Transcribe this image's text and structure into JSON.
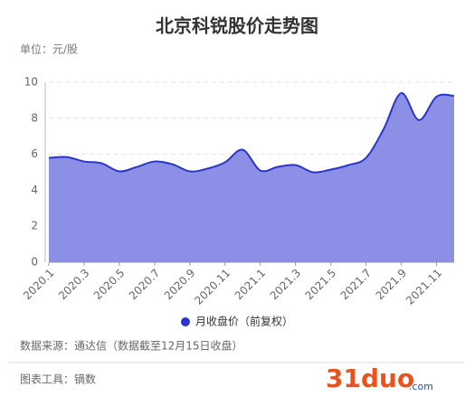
{
  "chart_data": {
    "type": "area",
    "title": "北京科锐股价走势图",
    "y_label": "单位：元/股",
    "categories": [
      "2020.1",
      null,
      "2020.3",
      null,
      "2020.5",
      null,
      "2020.7",
      null,
      "2020.9",
      null,
      "2020.11",
      null,
      "2021.1",
      null,
      "2021.3",
      null,
      "2021.5",
      null,
      "2021.7",
      null,
      "2021.9",
      null,
      "2021.11",
      null
    ],
    "series": [
      {
        "name": "月收盘价（前复权）",
        "color": "#2b35c9",
        "fill": "#8b8fe6",
        "values": [
          5.8,
          5.85,
          5.6,
          5.5,
          5.05,
          5.3,
          5.6,
          5.45,
          5.05,
          5.2,
          5.55,
          6.25,
          5.1,
          5.3,
          5.4,
          5.0,
          5.15,
          5.4,
          5.8,
          7.4,
          9.4,
          7.9,
          9.2,
          9.25
        ]
      }
    ],
    "ylim": [
      0,
      10
    ],
    "yticks": [
      0,
      2,
      4,
      6,
      8,
      10
    ],
    "grid": true
  },
  "source": "数据来源：通达信（数据截至12月15日收盘）",
  "tool": "图表工具：镝数",
  "watermark": {
    "main": "31duo",
    "suffix": ".com"
  }
}
